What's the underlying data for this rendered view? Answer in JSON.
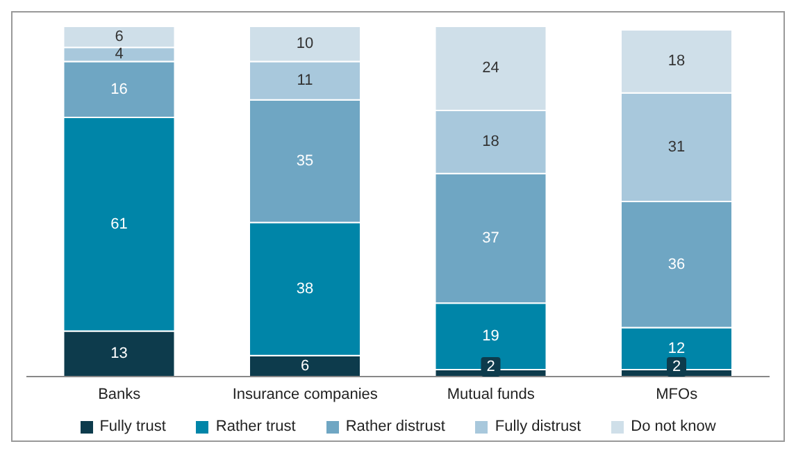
{
  "chart_data": {
    "type": "bar",
    "stacked": true,
    "data_labels": true,
    "legend": "bottom",
    "categories": [
      "Banks",
      "Insurance companies",
      "Mutual funds",
      "MFOs"
    ],
    "series": [
      {
        "name": "Fully trust",
        "color": "#0d3b4c",
        "values": [
          13,
          6,
          2,
          2
        ]
      },
      {
        "name": "Rather trust",
        "color": "#0085a8",
        "values": [
          61,
          38,
          19,
          12
        ]
      },
      {
        "name": "Rather distrust",
        "color": "#6fa6c3",
        "values": [
          16,
          35,
          37,
          36
        ]
      },
      {
        "name": "Fully distrust",
        "color": "#a8c8dc",
        "values": [
          4,
          11,
          18,
          31
        ]
      },
      {
        "name": "Do not know",
        "color": "#cfdfe9",
        "values": [
          6,
          10,
          24,
          18
        ]
      }
    ]
  }
}
